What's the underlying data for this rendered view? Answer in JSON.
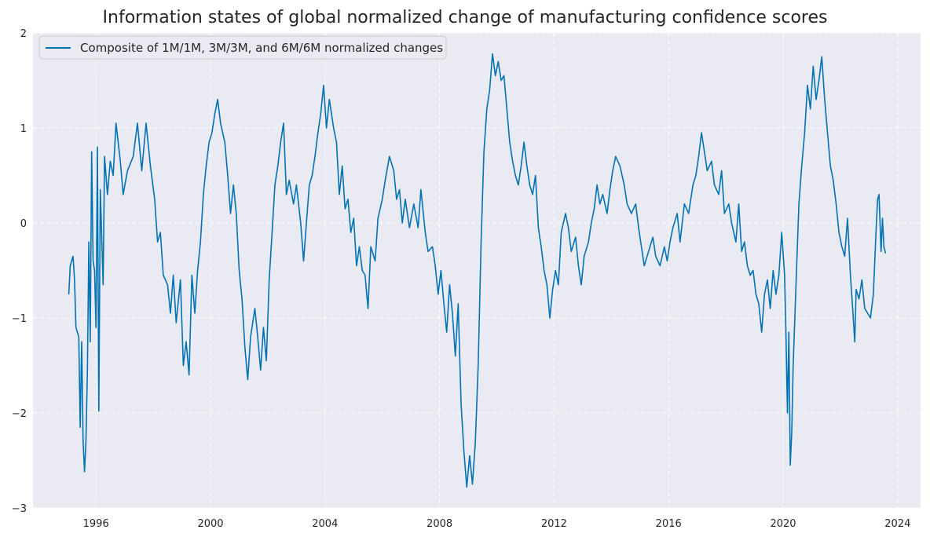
{
  "chart_data": {
    "type": "line",
    "title": "Information states of global normalized change of manufacturing confidence scores",
    "xlabel": "",
    "ylabel": "",
    "xlim": [
      1993.8,
      2024.8
    ],
    "ylim": [
      -3,
      2
    ],
    "x_ticks": [
      1996,
      2000,
      2004,
      2008,
      2012,
      2016,
      2020,
      2024
    ],
    "x_tick_labels": [
      "1996",
      "2000",
      "2004",
      "2008",
      "2012",
      "2016",
      "2020",
      "2024"
    ],
    "y_ticks": [
      -3,
      -2,
      -1,
      0,
      1,
      2
    ],
    "y_tick_labels": [
      "−3",
      "−2",
      "−1",
      "0",
      "1",
      "2"
    ],
    "grid": true,
    "legend_position": "top-left",
    "colors": {
      "line": "#0173b2",
      "background": "#eaeaf2",
      "grid": "#ffffff"
    },
    "series": [
      {
        "name": "Composite of 1M/1M, 3M/3M, and 6M/6M normalized changes",
        "points": [
          [
            1995.05,
            -0.75
          ],
          [
            1995.1,
            -0.45
          ],
          [
            1995.2,
            -0.35
          ],
          [
            1995.25,
            -0.6
          ],
          [
            1995.3,
            -1.1
          ],
          [
            1995.4,
            -1.2
          ],
          [
            1995.45,
            -2.15
          ],
          [
            1995.5,
            -1.25
          ],
          [
            1995.55,
            -2.3
          ],
          [
            1995.6,
            -2.62
          ],
          [
            1995.65,
            -2.3
          ],
          [
            1995.7,
            -1.55
          ],
          [
            1995.75,
            -0.2
          ],
          [
            1995.8,
            -1.25
          ],
          [
            1995.85,
            0.75
          ],
          [
            1995.9,
            -0.4
          ],
          [
            1995.95,
            -0.5
          ],
          [
            1996.0,
            -1.1
          ],
          [
            1996.05,
            0.8
          ],
          [
            1996.1,
            -1.98
          ],
          [
            1996.15,
            0.35
          ],
          [
            1996.25,
            -0.65
          ],
          [
            1996.3,
            0.7
          ],
          [
            1996.4,
            0.3
          ],
          [
            1996.5,
            0.65
          ],
          [
            1996.6,
            0.5
          ],
          [
            1996.7,
            1.05
          ],
          [
            1996.85,
            0.65
          ],
          [
            1996.95,
            0.3
          ],
          [
            1997.1,
            0.55
          ],
          [
            1997.3,
            0.7
          ],
          [
            1997.45,
            1.05
          ],
          [
            1997.6,
            0.55
          ],
          [
            1997.75,
            1.05
          ],
          [
            1997.9,
            0.6
          ],
          [
            1998.05,
            0.25
          ],
          [
            1998.15,
            -0.2
          ],
          [
            1998.25,
            -0.1
          ],
          [
            1998.35,
            -0.55
          ],
          [
            1998.5,
            -0.65
          ],
          [
            1998.6,
            -0.95
          ],
          [
            1998.7,
            -0.55
          ],
          [
            1998.8,
            -1.05
          ],
          [
            1998.95,
            -0.6
          ],
          [
            1999.05,
            -1.5
          ],
          [
            1999.15,
            -1.25
          ],
          [
            1999.25,
            -1.6
          ],
          [
            1999.35,
            -0.55
          ],
          [
            1999.45,
            -0.95
          ],
          [
            1999.55,
            -0.5
          ],
          [
            1999.65,
            -0.2
          ],
          [
            1999.75,
            0.3
          ],
          [
            1999.85,
            0.6
          ],
          [
            1999.95,
            0.85
          ],
          [
            2000.05,
            0.95
          ],
          [
            2000.15,
            1.15
          ],
          [
            2000.25,
            1.3
          ],
          [
            2000.35,
            1.05
          ],
          [
            2000.5,
            0.85
          ],
          [
            2000.6,
            0.5
          ],
          [
            2000.7,
            0.1
          ],
          [
            2000.8,
            0.4
          ],
          [
            2000.9,
            0.1
          ],
          [
            2001.0,
            -0.5
          ],
          [
            2001.1,
            -0.8
          ],
          [
            2001.2,
            -1.3
          ],
          [
            2001.3,
            -1.65
          ],
          [
            2001.4,
            -1.2
          ],
          [
            2001.55,
            -0.9
          ],
          [
            2001.65,
            -1.2
          ],
          [
            2001.75,
            -1.55
          ],
          [
            2001.85,
            -1.1
          ],
          [
            2001.95,
            -1.45
          ],
          [
            2002.05,
            -0.6
          ],
          [
            2002.15,
            -0.1
          ],
          [
            2002.25,
            0.4
          ],
          [
            2002.35,
            0.6
          ],
          [
            2002.45,
            0.85
          ],
          [
            2002.55,
            1.05
          ],
          [
            2002.65,
            0.3
          ],
          [
            2002.75,
            0.45
          ],
          [
            2002.9,
            0.2
          ],
          [
            2003.0,
            0.4
          ],
          [
            2003.15,
            0.0
          ],
          [
            2003.25,
            -0.4
          ],
          [
            2003.35,
            0.0
          ],
          [
            2003.45,
            0.4
          ],
          [
            2003.55,
            0.5
          ],
          [
            2003.65,
            0.7
          ],
          [
            2003.75,
            0.95
          ],
          [
            2003.85,
            1.15
          ],
          [
            2003.95,
            1.45
          ],
          [
            2004.05,
            1.0
          ],
          [
            2004.15,
            1.3
          ],
          [
            2004.3,
            1.0
          ],
          [
            2004.4,
            0.85
          ],
          [
            2004.5,
            0.3
          ],
          [
            2004.6,
            0.6
          ],
          [
            2004.7,
            0.15
          ],
          [
            2004.8,
            0.25
          ],
          [
            2004.9,
            -0.1
          ],
          [
            2005.0,
            0.05
          ],
          [
            2005.1,
            -0.45
          ],
          [
            2005.2,
            -0.25
          ],
          [
            2005.3,
            -0.5
          ],
          [
            2005.4,
            -0.55
          ],
          [
            2005.5,
            -0.9
          ],
          [
            2005.6,
            -0.25
          ],
          [
            2005.75,
            -0.4
          ],
          [
            2005.85,
            0.05
          ],
          [
            2006.0,
            0.25
          ],
          [
            2006.1,
            0.45
          ],
          [
            2006.25,
            0.7
          ],
          [
            2006.4,
            0.55
          ],
          [
            2006.5,
            0.25
          ],
          [
            2006.6,
            0.35
          ],
          [
            2006.7,
            0.0
          ],
          [
            2006.8,
            0.25
          ],
          [
            2006.95,
            -0.05
          ],
          [
            2007.1,
            0.2
          ],
          [
            2007.25,
            -0.05
          ],
          [
            2007.35,
            0.35
          ],
          [
            2007.5,
            -0.1
          ],
          [
            2007.6,
            -0.3
          ],
          [
            2007.75,
            -0.25
          ],
          [
            2007.85,
            -0.45
          ],
          [
            2007.95,
            -0.75
          ],
          [
            2008.05,
            -0.5
          ],
          [
            2008.15,
            -0.85
          ],
          [
            2008.25,
            -1.15
          ],
          [
            2008.35,
            -0.65
          ],
          [
            2008.45,
            -0.95
          ],
          [
            2008.55,
            -1.4
          ],
          [
            2008.65,
            -0.85
          ],
          [
            2008.75,
            -1.9
          ],
          [
            2008.85,
            -2.4
          ],
          [
            2008.95,
            -2.78
          ],
          [
            2009.05,
            -2.45
          ],
          [
            2009.15,
            -2.75
          ],
          [
            2009.25,
            -2.3
          ],
          [
            2009.35,
            -1.5
          ],
          [
            2009.45,
            -0.2
          ],
          [
            2009.55,
            0.75
          ],
          [
            2009.65,
            1.2
          ],
          [
            2009.75,
            1.4
          ],
          [
            2009.85,
            1.78
          ],
          [
            2009.95,
            1.55
          ],
          [
            2010.05,
            1.7
          ],
          [
            2010.15,
            1.5
          ],
          [
            2010.25,
            1.55
          ],
          [
            2010.35,
            1.2
          ],
          [
            2010.45,
            0.85
          ],
          [
            2010.55,
            0.65
          ],
          [
            2010.65,
            0.5
          ],
          [
            2010.75,
            0.4
          ],
          [
            2010.85,
            0.6
          ],
          [
            2010.95,
            0.85
          ],
          [
            2011.05,
            0.6
          ],
          [
            2011.15,
            0.4
          ],
          [
            2011.25,
            0.3
          ],
          [
            2011.35,
            0.5
          ],
          [
            2011.45,
            -0.05
          ],
          [
            2011.55,
            -0.25
          ],
          [
            2011.65,
            -0.5
          ],
          [
            2011.75,
            -0.65
          ],
          [
            2011.85,
            -1.0
          ],
          [
            2011.95,
            -0.7
          ],
          [
            2012.05,
            -0.5
          ],
          [
            2012.15,
            -0.65
          ],
          [
            2012.25,
            -0.1
          ],
          [
            2012.4,
            0.1
          ],
          [
            2012.5,
            -0.05
          ],
          [
            2012.6,
            -0.3
          ],
          [
            2012.75,
            -0.15
          ],
          [
            2012.85,
            -0.45
          ],
          [
            2012.95,
            -0.65
          ],
          [
            2013.05,
            -0.35
          ],
          [
            2013.2,
            -0.2
          ],
          [
            2013.3,
            0.0
          ],
          [
            2013.4,
            0.15
          ],
          [
            2013.5,
            0.4
          ],
          [
            2013.6,
            0.2
          ],
          [
            2013.7,
            0.3
          ],
          [
            2013.85,
            0.1
          ],
          [
            2013.95,
            0.35
          ],
          [
            2014.05,
            0.55
          ],
          [
            2014.15,
            0.7
          ],
          [
            2014.3,
            0.6
          ],
          [
            2014.45,
            0.4
          ],
          [
            2014.55,
            0.2
          ],
          [
            2014.7,
            0.1
          ],
          [
            2014.85,
            0.2
          ],
          [
            2014.95,
            -0.05
          ],
          [
            2015.05,
            -0.25
          ],
          [
            2015.15,
            -0.45
          ],
          [
            2015.3,
            -0.3
          ],
          [
            2015.45,
            -0.15
          ],
          [
            2015.55,
            -0.35
          ],
          [
            2015.7,
            -0.45
          ],
          [
            2015.85,
            -0.25
          ],
          [
            2015.95,
            -0.4
          ],
          [
            2016.05,
            -0.2
          ],
          [
            2016.15,
            -0.05
          ],
          [
            2016.3,
            0.1
          ],
          [
            2016.4,
            -0.2
          ],
          [
            2016.55,
            0.2
          ],
          [
            2016.7,
            0.1
          ],
          [
            2016.85,
            0.4
          ],
          [
            2016.95,
            0.5
          ],
          [
            2017.05,
            0.7
          ],
          [
            2017.15,
            0.95
          ],
          [
            2017.25,
            0.75
          ],
          [
            2017.35,
            0.55
          ],
          [
            2017.5,
            0.65
          ],
          [
            2017.6,
            0.4
          ],
          [
            2017.75,
            0.3
          ],
          [
            2017.85,
            0.55
          ],
          [
            2017.95,
            0.1
          ],
          [
            2018.1,
            0.2
          ],
          [
            2018.2,
            0.0
          ],
          [
            2018.35,
            -0.2
          ],
          [
            2018.45,
            0.2
          ],
          [
            2018.55,
            -0.3
          ],
          [
            2018.65,
            -0.2
          ],
          [
            2018.75,
            -0.45
          ],
          [
            2018.85,
            -0.55
          ],
          [
            2018.95,
            -0.5
          ],
          [
            2019.05,
            -0.75
          ],
          [
            2019.15,
            -0.85
          ],
          [
            2019.25,
            -1.15
          ],
          [
            2019.35,
            -0.75
          ],
          [
            2019.45,
            -0.6
          ],
          [
            2019.55,
            -0.9
          ],
          [
            2019.65,
            -0.5
          ],
          [
            2019.75,
            -0.75
          ],
          [
            2019.85,
            -0.55
          ],
          [
            2019.95,
            -0.1
          ],
          [
            2020.05,
            -0.55
          ],
          [
            2020.1,
            -1.2
          ],
          [
            2020.15,
            -2.0
          ],
          [
            2020.2,
            -1.15
          ],
          [
            2020.25,
            -2.55
          ],
          [
            2020.3,
            -2.2
          ],
          [
            2020.35,
            -1.5
          ],
          [
            2020.45,
            -0.65
          ],
          [
            2020.55,
            0.2
          ],
          [
            2020.65,
            0.6
          ],
          [
            2020.75,
            0.95
          ],
          [
            2020.85,
            1.45
          ],
          [
            2020.95,
            1.2
          ],
          [
            2021.05,
            1.65
          ],
          [
            2021.15,
            1.3
          ],
          [
            2021.25,
            1.5
          ],
          [
            2021.35,
            1.75
          ],
          [
            2021.45,
            1.3
          ],
          [
            2021.55,
            0.95
          ],
          [
            2021.65,
            0.6
          ],
          [
            2021.75,
            0.45
          ],
          [
            2021.85,
            0.2
          ],
          [
            2021.95,
            -0.1
          ],
          [
            2022.05,
            -0.25
          ],
          [
            2022.15,
            -0.35
          ],
          [
            2022.25,
            0.05
          ],
          [
            2022.35,
            -0.55
          ],
          [
            2022.45,
            -1.0
          ],
          [
            2022.5,
            -1.25
          ],
          [
            2022.55,
            -0.7
          ],
          [
            2022.65,
            -0.8
          ],
          [
            2022.75,
            -0.6
          ],
          [
            2022.85,
            -0.9
          ],
          [
            2022.95,
            -0.95
          ],
          [
            2023.05,
            -1.0
          ],
          [
            2023.15,
            -0.75
          ],
          [
            2023.25,
            -0.05
          ],
          [
            2023.3,
            0.25
          ],
          [
            2023.35,
            0.3
          ],
          [
            2023.42,
            -0.3
          ],
          [
            2023.47,
            0.05
          ],
          [
            2023.52,
            -0.25
          ],
          [
            2023.58,
            -0.32
          ]
        ]
      }
    ]
  }
}
